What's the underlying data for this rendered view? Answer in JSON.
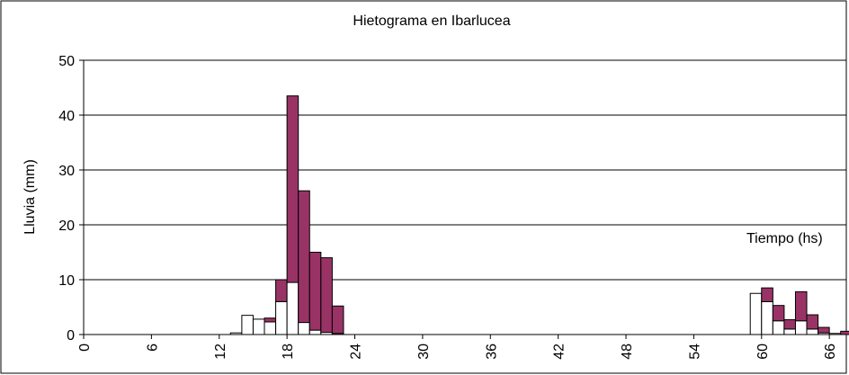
{
  "chart_data": {
    "type": "stacked-histogram",
    "title": "Hietograma en Ibarlucea",
    "y_label": "Lluvia (mm)",
    "annotation": "Tiempo (hs)",
    "x": [
      13,
      14,
      15,
      16,
      17,
      18,
      19,
      20,
      21,
      22,
      59,
      60,
      61,
      62,
      63,
      64,
      65,
      66,
      67
    ],
    "series": [
      {
        "color": "#ffffff",
        "values": [
          0.3,
          3.5,
          2.8,
          2.3,
          6,
          9.5,
          2.2,
          0.8,
          0.4,
          0.2,
          7.5,
          6,
          2.5,
          1,
          2.5,
          1,
          0.3,
          0.2,
          0
        ]
      },
      {
        "color": "#993366",
        "values": [
          0,
          0,
          0,
          0.7,
          4,
          34,
          24,
          14.2,
          13.6,
          5,
          0,
          2.5,
          2.8,
          1.7,
          5.3,
          2.6,
          1,
          0,
          0.6
        ]
      }
    ],
    "xlim": [
      0,
      67.5
    ],
    "xticks": [
      0,
      6,
      12,
      18,
      24,
      30,
      36,
      42,
      48,
      54,
      60,
      66
    ],
    "ylim": [
      0,
      50
    ],
    "yticks": [
      0,
      10,
      20,
      30,
      40,
      50
    ],
    "grid": true
  }
}
